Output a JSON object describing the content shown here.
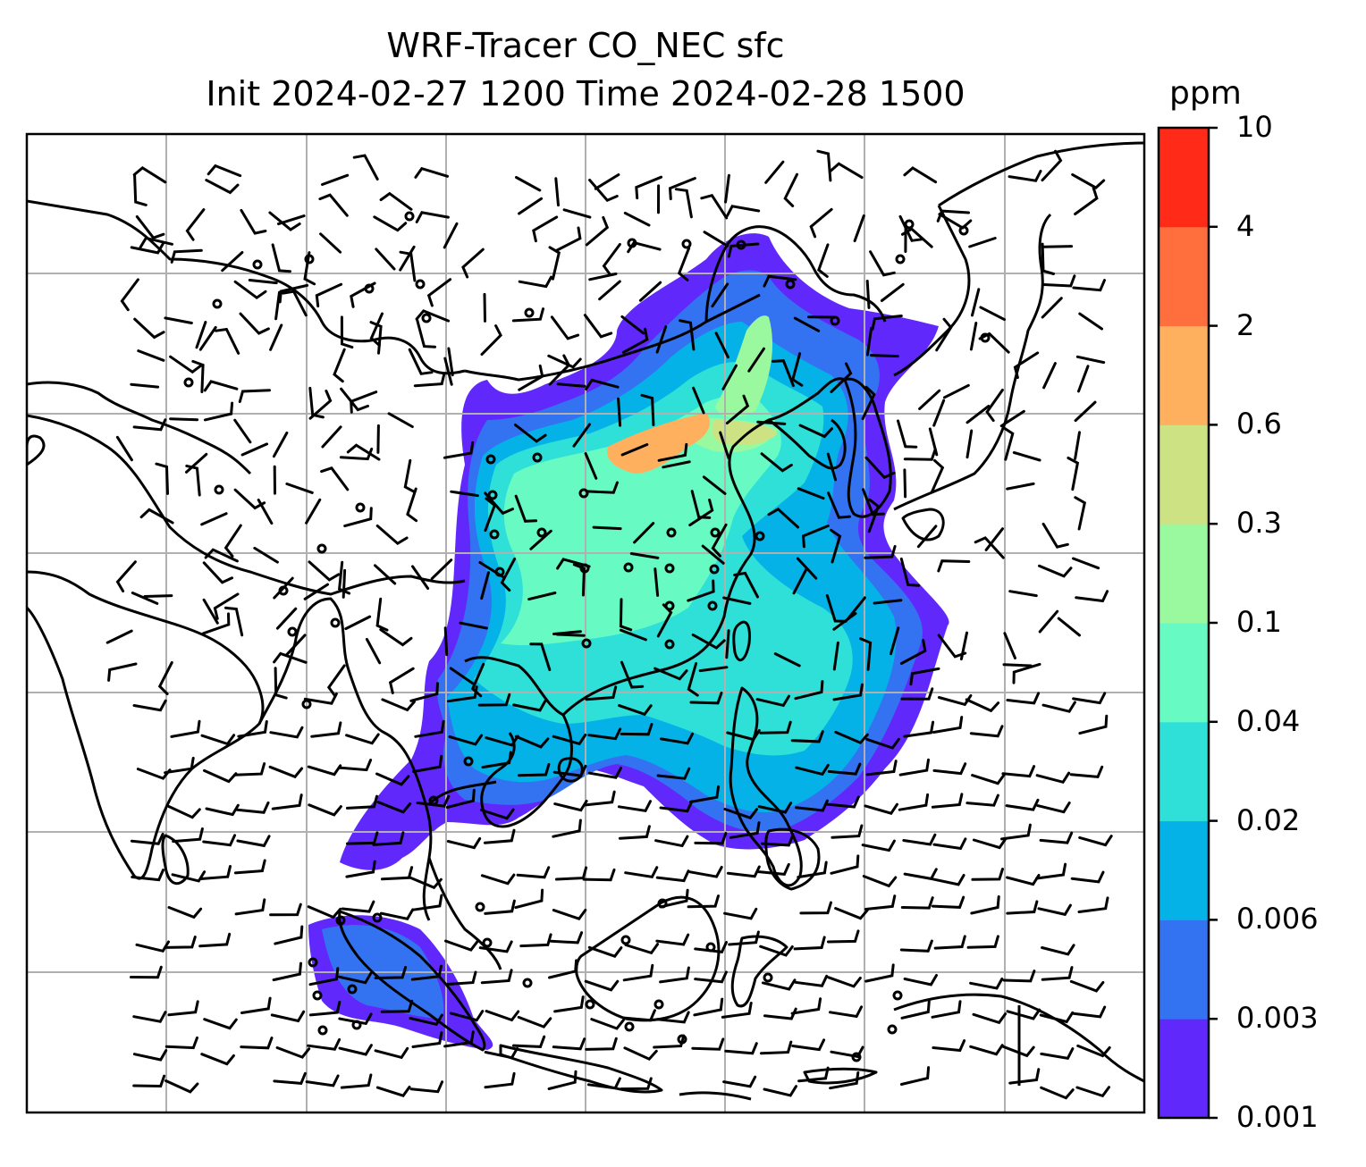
{
  "title": {
    "line1": "WRF-Tracer CO_NEC sfc",
    "line2": "Init 2024-02-27 1200 Time 2024-02-28 1500"
  },
  "colorbar": {
    "unit": "ppm",
    "levels": [
      "0.001",
      "0.003",
      "0.006",
      "0.02",
      "0.04",
      "0.1",
      "0.3",
      "0.6",
      "2",
      "4",
      "10"
    ],
    "colors": [
      "#6128fc",
      "#3373f2",
      "#05b2e7",
      "#2ee0d7",
      "#67fbc3",
      "#9af99f",
      "#cde283",
      "#ffb05e",
      "#ff6f3d",
      "#ff2b18"
    ]
  },
  "map": {
    "gridlines": "on",
    "gridline_color": "#b0b0b0",
    "coastline_color": "#000000"
  }
}
